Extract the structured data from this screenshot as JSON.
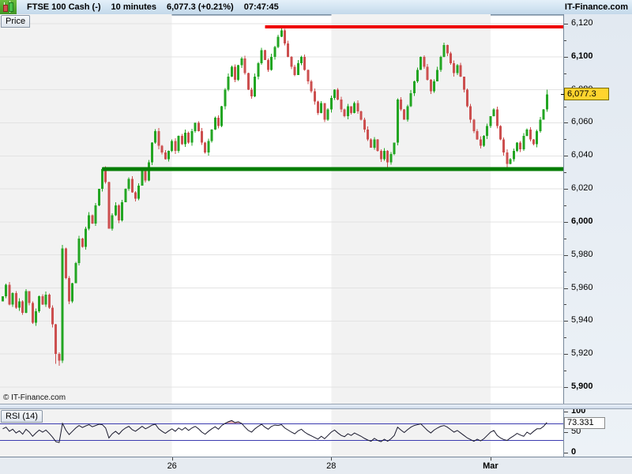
{
  "topbar": {
    "instrument": "FTSE 100 Cash (-)",
    "timeframe": "10 minutes",
    "quote": "6,077.3 (+0.21%)",
    "time": "07:47:45",
    "brand": "IT-Finance.com"
  },
  "price_pane": {
    "tab_label": "Price",
    "copyright": "© IT-Finance.com",
    "last_price_label": "6,077.3"
  },
  "rsi_pane": {
    "tab_label": "RSI (14)",
    "value_label": "73.331"
  },
  "chart_data": {
    "type": "candlestick",
    "title": "FTSE 100 Cash, 10 minutes",
    "last_price": 6077.3,
    "change_percent": "+0.21%",
    "time": "07:47:45",
    "price_axis": {
      "min": 5890,
      "max": 6125,
      "ticks": [
        6120,
        6100,
        6080,
        6060,
        6040,
        6020,
        6000,
        5980,
        5960,
        5940,
        5920,
        5900
      ],
      "tick_labels": [
        "6,120",
        "6,100",
        "6,080",
        "6,060",
        "6,040",
        "6,020",
        "6,000",
        "5,980",
        "5,960",
        "5,940",
        "5,920",
        "5,900"
      ]
    },
    "x_ticks": [
      {
        "index": 51,
        "label": "26",
        "bold": false
      },
      {
        "index": 99,
        "label": "28",
        "bold": false
      },
      {
        "index": 147,
        "label": "Mar",
        "bold": true
      }
    ],
    "resistance_line": {
      "price": 6118,
      "from_index": 79,
      "color": "#ee0000"
    },
    "support_line": {
      "price": 6032,
      "from_index": 30,
      "color": "#067d06"
    },
    "up_color": "#22a522",
    "down_color": "#cc4f4f",
    "candles": {
      "first_open": 5952,
      "closes": [
        5955,
        5962,
        5950,
        5957,
        5948,
        5952,
        5945,
        5958,
        5951,
        5939,
        5946,
        5955,
        5950,
        5956,
        5948,
        5938,
        5920,
        5916,
        5984,
        5966,
        5952,
        5963,
        5975,
        5990,
        5985,
        5996,
        6004,
        5999,
        6010,
        6020,
        6032,
        6024,
        5996,
        6004,
        6010,
        6001,
        6012,
        6020,
        6026,
        6018,
        6014,
        6022,
        6031,
        6025,
        6036,
        6048,
        6055,
        6046,
        6042,
        6038,
        6043,
        6049,
        6043,
        6052,
        6047,
        6054,
        6048,
        6055,
        6060,
        6055,
        6048,
        6042,
        6049,
        6056,
        6063,
        6058,
        6070,
        6080,
        6088,
        6094,
        6086,
        6095,
        6099,
        6090,
        6080,
        6076,
        6088,
        6096,
        6104,
        6098,
        6092,
        6100,
        6106,
        6112,
        6116,
        6108,
        6100,
        6094,
        6089,
        6096,
        6100,
        6092,
        6085,
        6079,
        6073,
        6066,
        6072,
        6062,
        6068,
        6075,
        6080,
        6074,
        6068,
        6064,
        6070,
        6066,
        6072,
        6067,
        6062,
        6056,
        6050,
        6045,
        6050,
        6043,
        6038,
        6043,
        6036,
        6041,
        6048,
        6074,
        6068,
        6062,
        6070,
        6078,
        6085,
        6092,
        6100,
        6094,
        6086,
        6079,
        6085,
        6092,
        6100,
        6107,
        6102,
        6096,
        6090,
        6095,
        6088,
        6080,
        6070,
        6062,
        6055,
        6050,
        6046,
        6052,
        6058,
        6064,
        6068,
        6058,
        6050,
        6042,
        6035,
        6038,
        6043,
        6048,
        6044,
        6052,
        6056,
        6050,
        6047,
        6055,
        6062,
        6068,
        6077.3
      ],
      "wick_overrides": {
        "16": {
          "low": 5914
        },
        "17": {
          "low": 5913
        },
        "18": {
          "high": 5986
        },
        "84": {
          "high": 6118
        },
        "116": {
          "low": 6033
        },
        "152": {
          "low": 6031.5
        },
        "164": {
          "high": 6080
        }
      }
    },
    "rsi": {
      "period": 14,
      "last_value": 73.331,
      "upper_level": 70,
      "lower_level": 30,
      "axis_ticks": [
        {
          "value": 100,
          "label": "100",
          "bold": true
        },
        {
          "value": 50,
          "label": "50",
          "bold": false
        },
        {
          "value": 0,
          "label": "0",
          "bold": true
        }
      ],
      "values": [
        58,
        62,
        52,
        57,
        48,
        53,
        45,
        57,
        50,
        40,
        48,
        55,
        50,
        55,
        47,
        38,
        27,
        25,
        71,
        55,
        44,
        52,
        60,
        66,
        61,
        65,
        68,
        63,
        66,
        69,
        68,
        60,
        36,
        46,
        52,
        45,
        54,
        60,
        64,
        56,
        52,
        58,
        64,
        58,
        62,
        67,
        69,
        58,
        52,
        47,
        53,
        58,
        52,
        60,
        55,
        61,
        54,
        60,
        64,
        58,
        50,
        45,
        52,
        58,
        63,
        57,
        66,
        71,
        75,
        78,
        73,
        75,
        71,
        62,
        54,
        50,
        58,
        64,
        69,
        62,
        57,
        64,
        67,
        66,
        68,
        60,
        55,
        50,
        46,
        53,
        57,
        50,
        45,
        41,
        37,
        33,
        40,
        34,
        42,
        50,
        55,
        48,
        42,
        39,
        46,
        42,
        48,
        44,
        40,
        35,
        31,
        28,
        35,
        30,
        27,
        33,
        28,
        34,
        42,
        62,
        55,
        49,
        56,
        62,
        66,
        68,
        70,
        62,
        54,
        48,
        55,
        60,
        64,
        66,
        62,
        56,
        50,
        54,
        48,
        42,
        36,
        32,
        28,
        33,
        29,
        34,
        42,
        50,
        54,
        42,
        36,
        32,
        30,
        36,
        41,
        47,
        43,
        40,
        50,
        45,
        52,
        58,
        58,
        64,
        73.331
      ]
    },
    "grid": {
      "horizontal": true,
      "shaded_session_bands": true
    },
    "colors": {
      "grid_line": "#e3e3e3",
      "session_band": "#f2f2f2",
      "rsi_level_line": "#3b3bb0",
      "rsi_line": "#1a1a2e",
      "rsi_overbought_fill": "rgba(190,80,90,0.45)",
      "badge_price_bg": "#ffd42e",
      "badge_rsi_bg": "#fdfdfd"
    }
  }
}
